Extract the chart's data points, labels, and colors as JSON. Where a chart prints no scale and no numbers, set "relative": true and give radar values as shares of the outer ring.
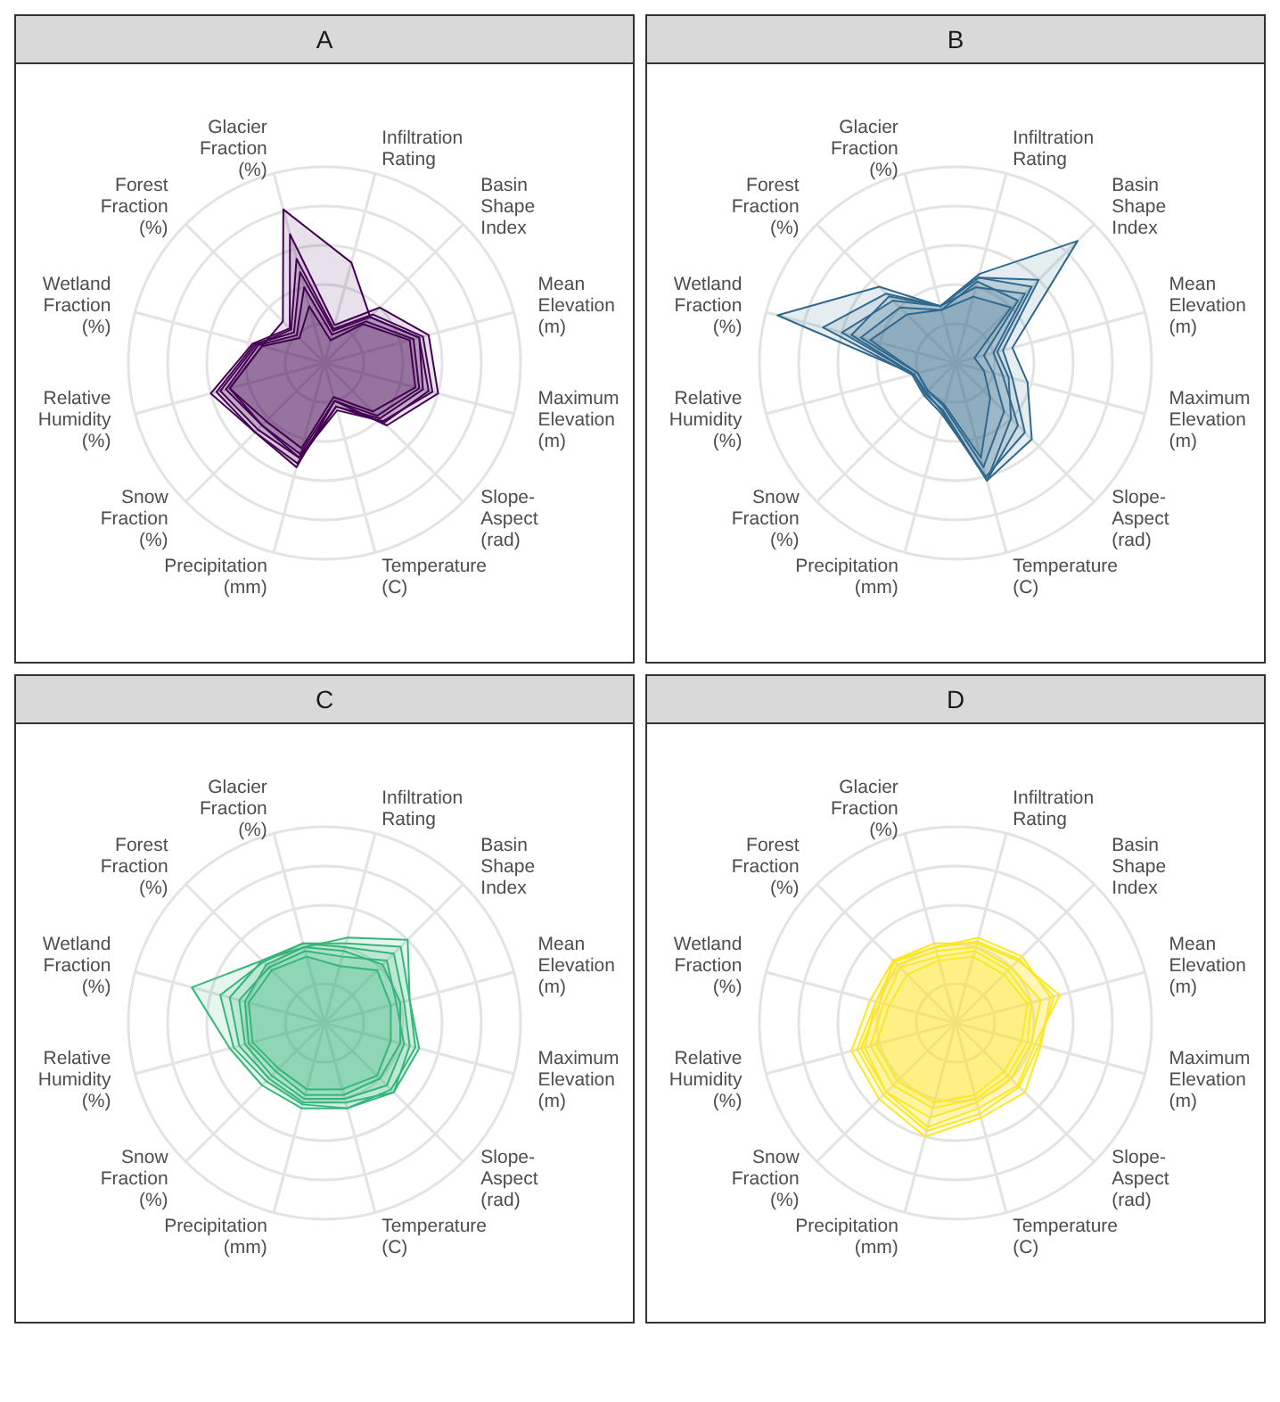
{
  "chart_data": [
    {
      "type": "radar",
      "title": "A",
      "relative": true,
      "grid": true,
      "categories": [
        "Infiltration\nRating",
        "Basin\nShape\nIndex",
        "Mean\nElevation\n(m)",
        "Maximum\nElevation\n(m)",
        "Slope-\nAspect\n(rad)",
        "Temperature\n(C)",
        "Precipitation\n(mm)",
        "Snow\nFraction\n(%)",
        "Relative\nHumidity\n(%)",
        "Wetland\nFraction\n(%)",
        "Forest\nFraction\n(%)",
        "Glacier\nFraction\n(%)"
      ],
      "series": [
        {
          "color": "#440154",
          "values": [
            0.53,
            0.33,
            0.5,
            0.55,
            0.43,
            0.23,
            0.5,
            0.45,
            0.5,
            0.33,
            0.3,
            0.81
          ]
        },
        {
          "color": "#440154",
          "values": [
            0.2,
            0.4,
            0.55,
            0.6,
            0.45,
            0.2,
            0.55,
            0.5,
            0.6,
            0.38,
            0.25,
            0.68
          ]
        },
        {
          "color": "#440154",
          "values": [
            0.17,
            0.33,
            0.5,
            0.52,
            0.4,
            0.23,
            0.53,
            0.5,
            0.57,
            0.37,
            0.22,
            0.48
          ]
        },
        {
          "color": "#440154",
          "values": [
            0.15,
            0.3,
            0.47,
            0.5,
            0.38,
            0.2,
            0.48,
            0.45,
            0.52,
            0.35,
            0.2,
            0.4
          ]
        },
        {
          "color": "#440154",
          "values": [
            0.12,
            0.28,
            0.45,
            0.48,
            0.35,
            0.18,
            0.45,
            0.42,
            0.5,
            0.33,
            0.18,
            0.3
          ]
        },
        {
          "color": "#440154",
          "values": [
            0.18,
            0.35,
            0.52,
            0.57,
            0.42,
            0.25,
            0.5,
            0.48,
            0.55,
            0.36,
            0.24,
            0.55
          ]
        }
      ]
    },
    {
      "type": "radar",
      "title": "B",
      "relative": true,
      "grid": true,
      "categories": [
        "Infiltration\nRating",
        "Basin\nShape\nIndex",
        "Mean\nElevation\n(m)",
        "Maximum\nElevation\n(m)",
        "Slope-\nAspect\n(rad)",
        "Temperature\n(C)",
        "Precipitation\n(mm)",
        "Snow\nFraction\n(%)",
        "Relative\nHumidity\n(%)",
        "Wetland\nFraction\n(%)",
        "Forest\nFraction\n(%)",
        "Glacier\nFraction\n(%)"
      ],
      "series": [
        {
          "color": "#31688e",
          "values": [
            0.47,
            0.88,
            0.3,
            0.38,
            0.55,
            0.62,
            0.25,
            0.22,
            0.22,
            0.94,
            0.55,
            0.3
          ]
        },
        {
          "color": "#31688e",
          "values": [
            0.45,
            0.6,
            0.25,
            0.3,
            0.5,
            0.6,
            0.27,
            0.23,
            0.23,
            0.7,
            0.5,
            0.3
          ]
        },
        {
          "color": "#31688e",
          "values": [
            0.4,
            0.5,
            0.2,
            0.25,
            0.45,
            0.62,
            0.25,
            0.22,
            0.22,
            0.55,
            0.48,
            0.3
          ]
        },
        {
          "color": "#31688e",
          "values": [
            0.43,
            0.45,
            0.15,
            0.2,
            0.35,
            0.55,
            0.23,
            0.2,
            0.2,
            0.5,
            0.4,
            0.28
          ]
        },
        {
          "color": "#31688e",
          "values": [
            0.35,
            0.4,
            0.1,
            0.15,
            0.25,
            0.5,
            0.22,
            0.2,
            0.2,
            0.45,
            0.35,
            0.28
          ]
        },
        {
          "color": "#31688e",
          "values": [
            0.45,
            0.55,
            0.22,
            0.28,
            0.4,
            0.62,
            0.26,
            0.21,
            0.22,
            0.6,
            0.45,
            0.3
          ]
        }
      ]
    },
    {
      "type": "radar",
      "title": "C",
      "relative": true,
      "grid": true,
      "categories": [
        "Infiltration\nRating",
        "Basin\nShape\nIndex",
        "Mean\nElevation\n(m)",
        "Maximum\nElevation\n(m)",
        "Slope-\nAspect\n(rad)",
        "Temperature\n(C)",
        "Precipitation\n(mm)",
        "Snow\nFraction\n(%)",
        "Relative\nHumidity\n(%)",
        "Wetland\nFraction\n(%)",
        "Forest\nFraction\n(%)",
        "Glacier\nFraction\n(%)"
      ],
      "series": [
        {
          "color": "#35b779",
          "values": [
            0.45,
            0.6,
            0.45,
            0.5,
            0.5,
            0.45,
            0.45,
            0.45,
            0.5,
            0.7,
            0.45,
            0.4
          ]
        },
        {
          "color": "#35b779",
          "values": [
            0.4,
            0.5,
            0.42,
            0.45,
            0.5,
            0.42,
            0.42,
            0.4,
            0.45,
            0.5,
            0.45,
            0.42
          ]
        },
        {
          "color": "#35b779",
          "values": [
            0.35,
            0.45,
            0.38,
            0.42,
            0.45,
            0.4,
            0.4,
            0.38,
            0.42,
            0.45,
            0.4,
            0.38
          ]
        },
        {
          "color": "#35b779",
          "values": [
            0.38,
            0.42,
            0.4,
            0.4,
            0.4,
            0.38,
            0.38,
            0.35,
            0.4,
            0.42,
            0.42,
            0.4
          ]
        },
        {
          "color": "#35b779",
          "values": [
            0.3,
            0.38,
            0.35,
            0.35,
            0.38,
            0.35,
            0.35,
            0.33,
            0.38,
            0.4,
            0.38,
            0.35
          ]
        },
        {
          "color": "#35b779",
          "values": [
            0.42,
            0.55,
            0.45,
            0.48,
            0.48,
            0.45,
            0.43,
            0.42,
            0.48,
            0.55,
            0.44,
            0.42
          ]
        }
      ]
    },
    {
      "type": "radar",
      "title": "D",
      "relative": true,
      "grid": true,
      "categories": [
        "Infiltration\nRating",
        "Basin\nShape\nIndex",
        "Mean\nElevation\n(m)",
        "Maximum\nElevation\n(m)",
        "Slope-\nAspect\n(rad)",
        "Temperature\n(C)",
        "Precipitation\n(mm)",
        "Snow\nFraction\n(%)",
        "Relative\nHumidity\n(%)",
        "Wetland\nFraction\n(%)",
        "Forest\nFraction\n(%)",
        "Glacier\nFraction\n(%)"
      ],
      "series": [
        {
          "color": "#fde725",
          "values": [
            0.45,
            0.48,
            0.5,
            0.45,
            0.5,
            0.5,
            0.6,
            0.55,
            0.55,
            0.45,
            0.45,
            0.4
          ]
        },
        {
          "color": "#fde725",
          "values": [
            0.42,
            0.45,
            0.55,
            0.42,
            0.45,
            0.45,
            0.55,
            0.5,
            0.5,
            0.4,
            0.45,
            0.42
          ]
        },
        {
          "color": "#fde725",
          "values": [
            0.4,
            0.4,
            0.45,
            0.4,
            0.4,
            0.42,
            0.5,
            0.5,
            0.48,
            0.42,
            0.42,
            0.38
          ]
        },
        {
          "color": "#fde725",
          "values": [
            0.38,
            0.38,
            0.4,
            0.38,
            0.38,
            0.4,
            0.45,
            0.45,
            0.45,
            0.38,
            0.4,
            0.35
          ]
        },
        {
          "color": "#fde725",
          "values": [
            0.35,
            0.35,
            0.38,
            0.35,
            0.35,
            0.38,
            0.42,
            0.42,
            0.42,
            0.35,
            0.35,
            0.33
          ]
        },
        {
          "color": "#fde725",
          "values": [
            0.43,
            0.46,
            0.52,
            0.44,
            0.46,
            0.48,
            0.57,
            0.52,
            0.52,
            0.42,
            0.44,
            0.4
          ]
        }
      ]
    }
  ]
}
